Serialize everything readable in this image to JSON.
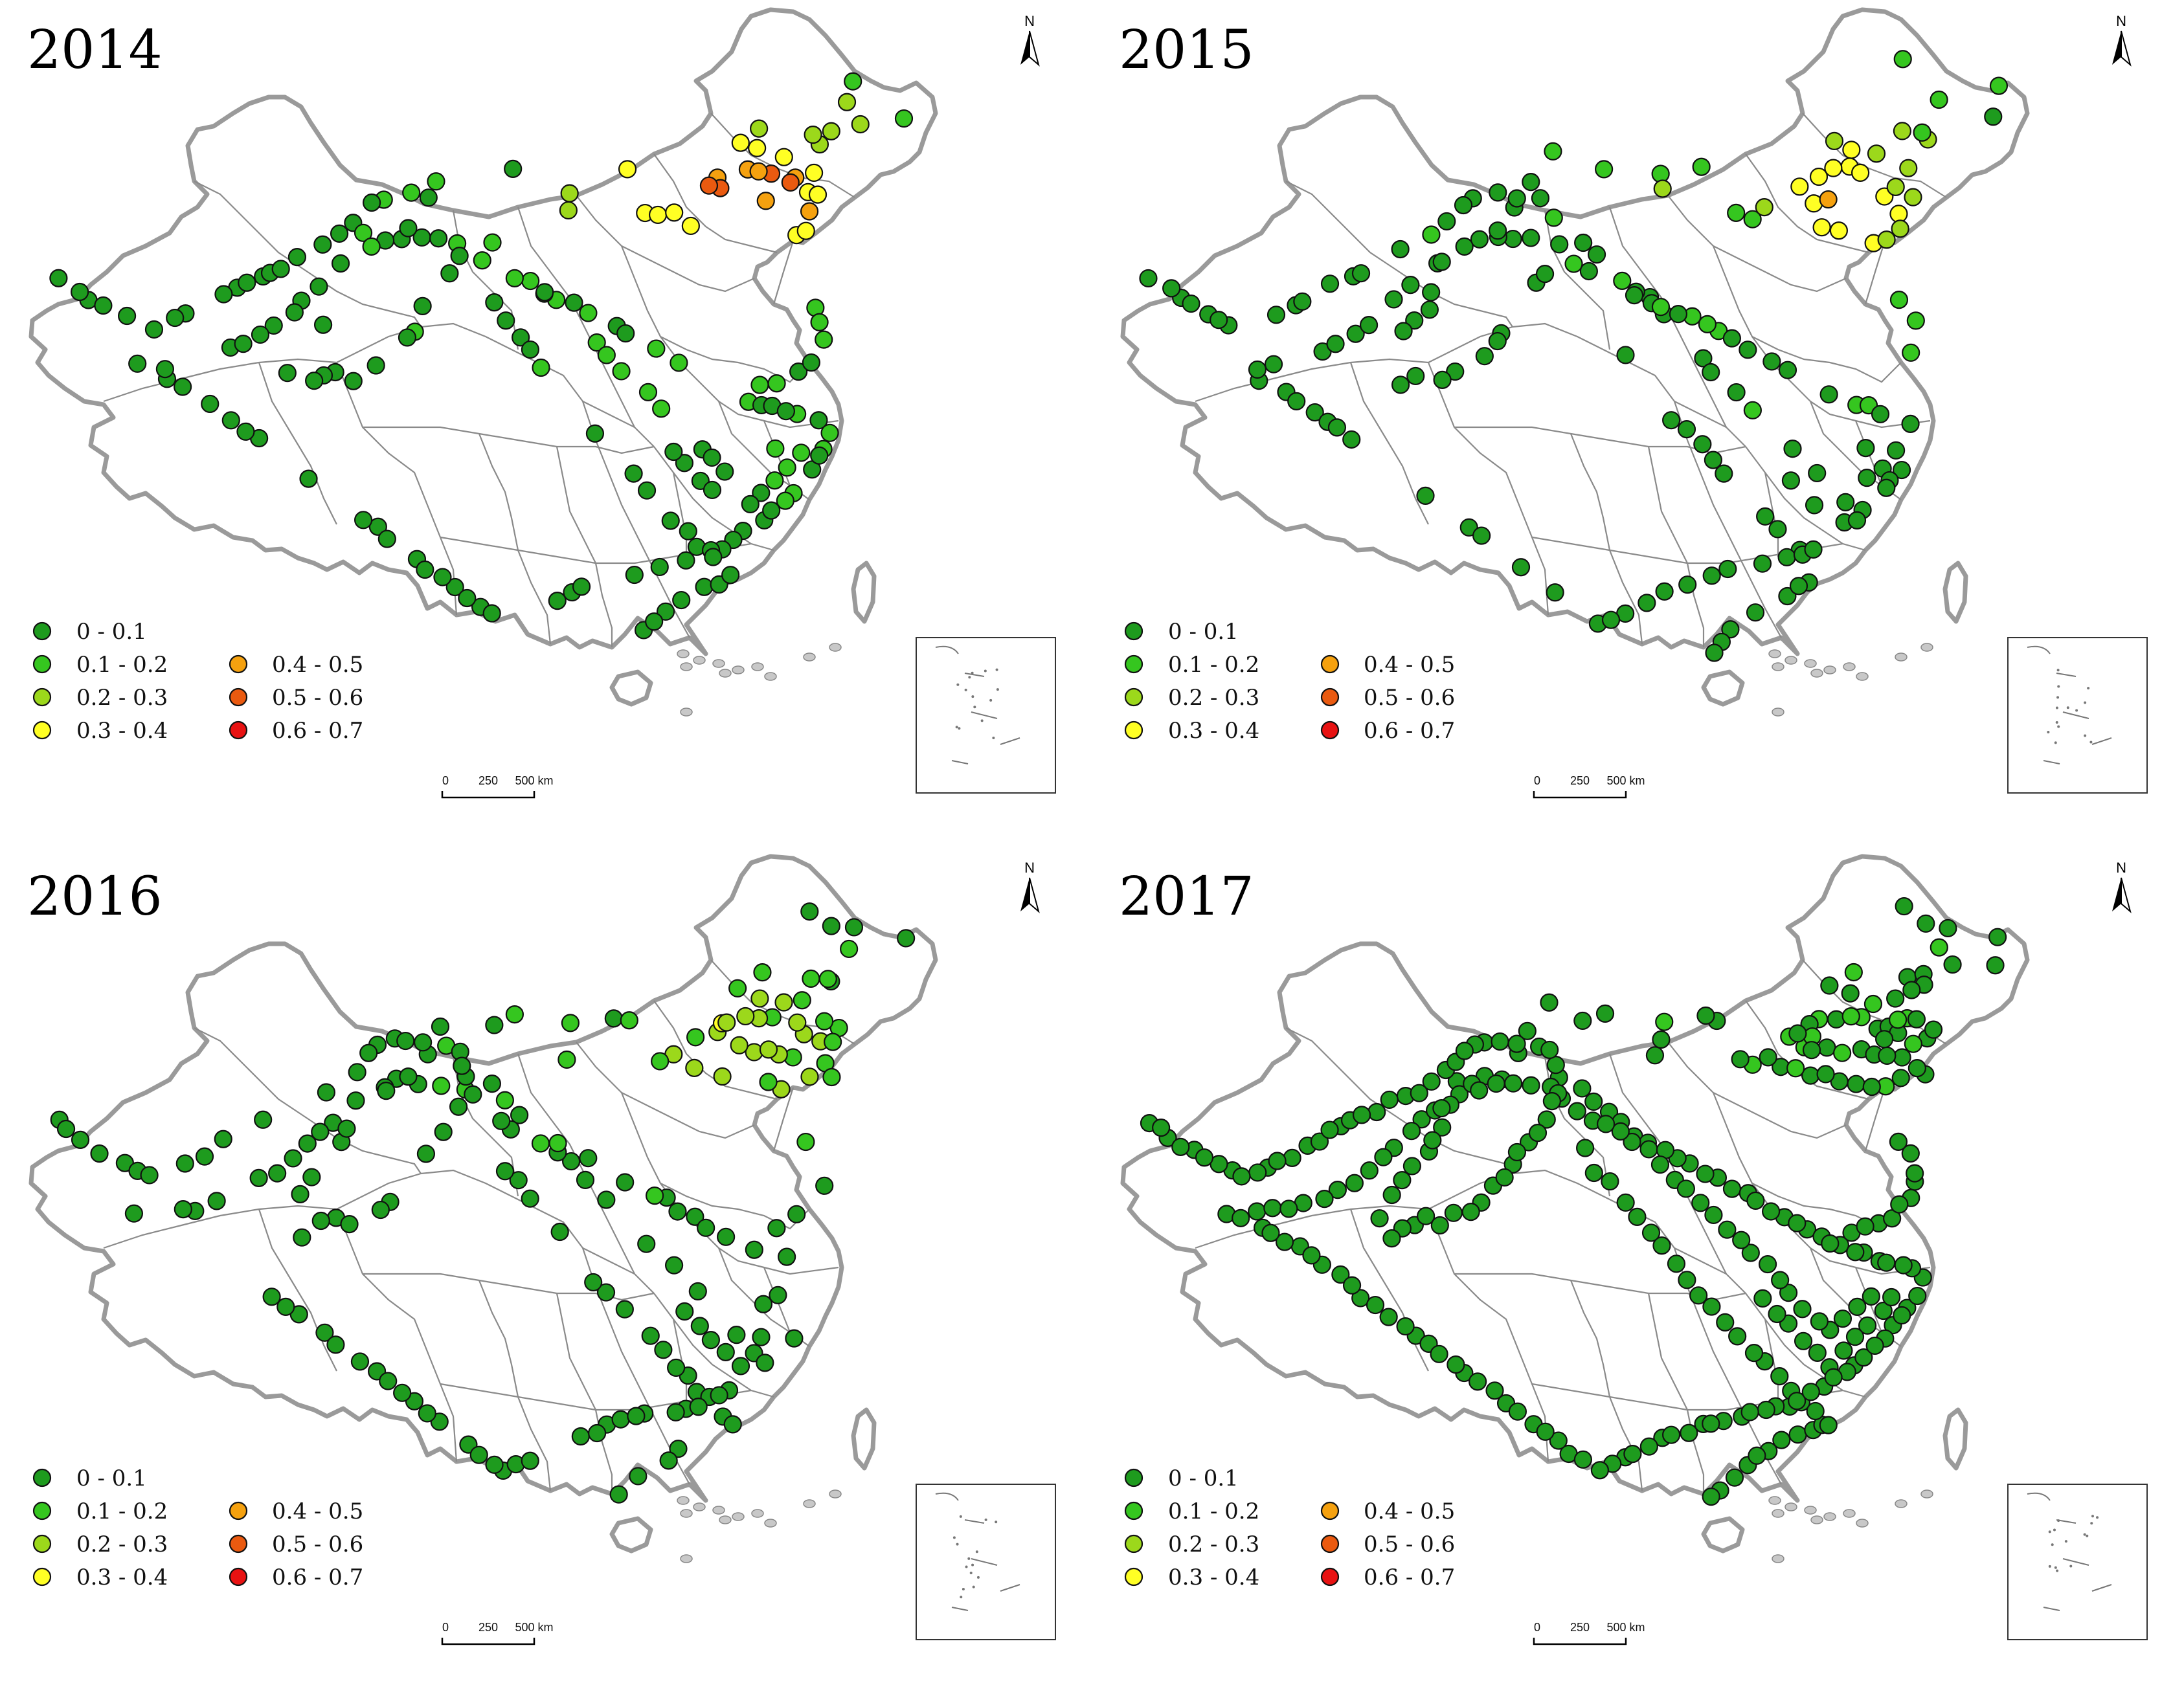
{
  "figure": {
    "legend": {
      "classes": [
        {
          "label": "0 - 0.1",
          "color": "#1e9b1e"
        },
        {
          "label": "0.1 - 0.2",
          "color": "#35c61f"
        },
        {
          "label": "0.2 - 0.3",
          "color": "#9cd81b"
        },
        {
          "label": "0.3 - 0.4",
          "color": "#ffff24"
        },
        {
          "label": "0.4 - 0.5",
          "color": "#f5a10f"
        },
        {
          "label": "0.5 - 0.6",
          "color": "#ea5a10"
        },
        {
          "label": "0.6 - 0.7",
          "color": "#e81212"
        }
      ]
    },
    "north_label": "N",
    "scale_bar": {
      "ticks": [
        "0",
        "250",
        "500 km"
      ]
    },
    "panels": [
      {
        "year": "2014"
      },
      {
        "year": "2015"
      },
      {
        "year": "2016"
      },
      {
        "year": "2017"
      }
    ]
  }
}
